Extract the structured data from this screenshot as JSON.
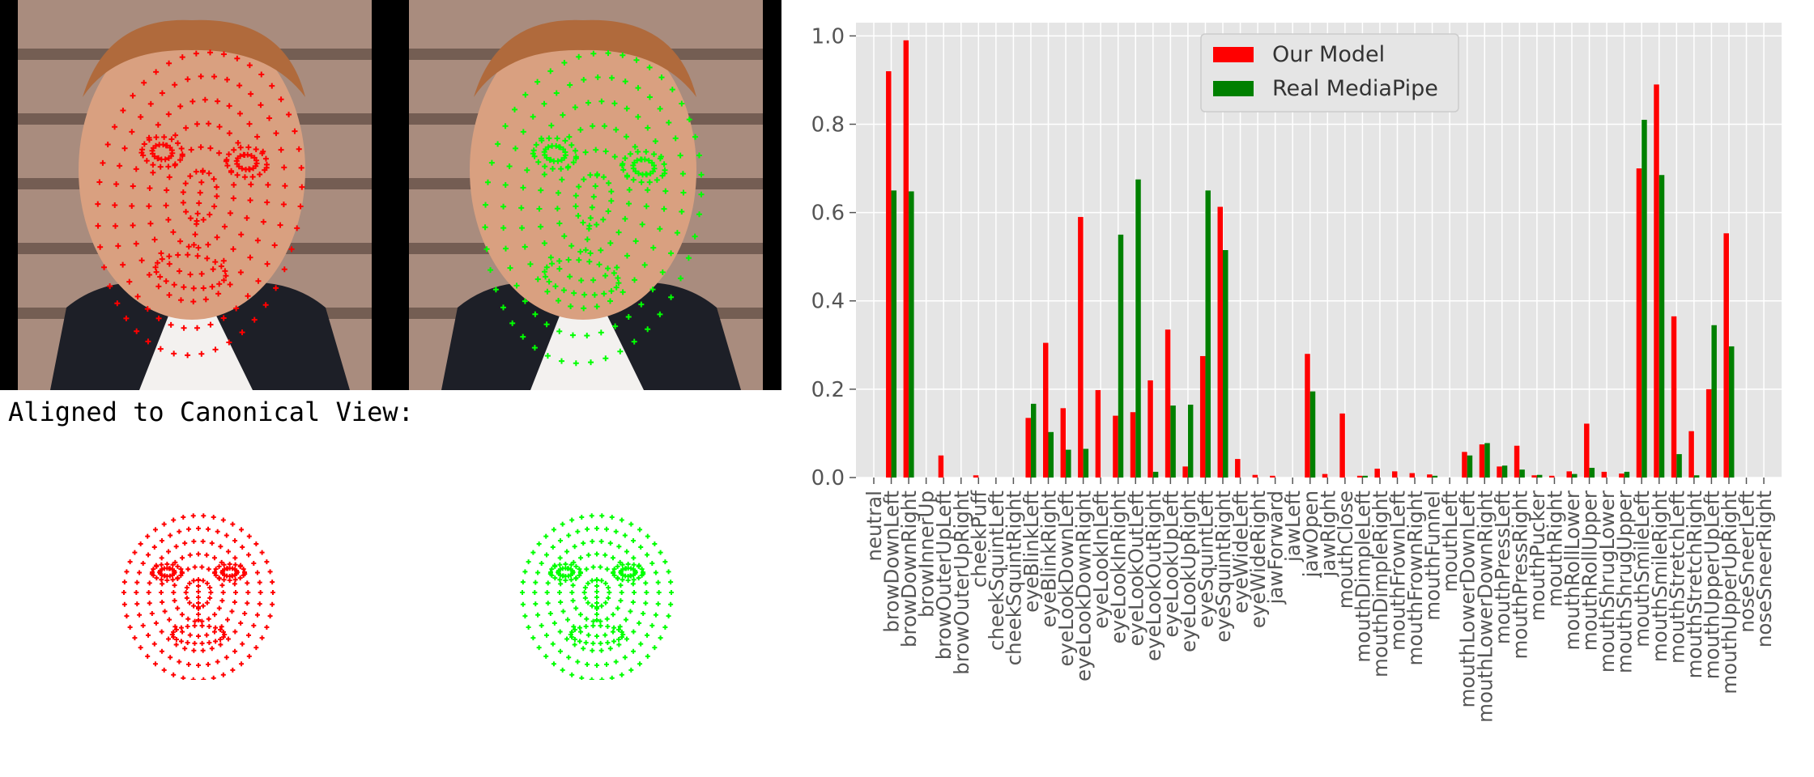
{
  "colors": {
    "our_model": "#ff0000",
    "real_mediapipe": "#008000",
    "green_points": "#00ff00",
    "plot_bg": "#e5e5e5"
  },
  "aligned_label": "Aligned to Canonical View:",
  "chart_data": {
    "type": "bar",
    "title": "",
    "xlabel": "",
    "ylabel": "",
    "ylim": [
      0,
      1.03
    ],
    "yticks": [
      "0.0",
      "0.2",
      "0.4",
      "0.6",
      "0.8",
      "1.0"
    ],
    "grid": true,
    "legend_position": "top-center",
    "categories": [
      "neutral",
      "browDownLeft",
      "browDownRight",
      "browInnerUp",
      "browOuterUpLeft",
      "browOuterUpRight",
      "cheekPuff",
      "cheekSquintLeft",
      "cheekSquintRight",
      "eyeBlinkLeft",
      "eyeBlinkRight",
      "eyeLookDownLeft",
      "eyeLookDownRight",
      "eyeLookInLeft",
      "eyeLookInRight",
      "eyeLookOutLeft",
      "eyeLookOutRight",
      "eyeLookUpLeft",
      "eyeLookUpRight",
      "eyeSquintLeft",
      "eyeSquintRight",
      "eyeWideLeft",
      "eyeWideRight",
      "jawForward",
      "jawLeft",
      "jawOpen",
      "jawRight",
      "mouthClose",
      "mouthDimpleLeft",
      "mouthDimpleRight",
      "mouthFrownLeft",
      "mouthFrownRight",
      "mouthFunnel",
      "mouthLeft",
      "mouthLowerDownLeft",
      "mouthLowerDownRight",
      "mouthPressLeft",
      "mouthPressRight",
      "mouthPucker",
      "mouthRight",
      "mouthRollLower",
      "mouthRollUpper",
      "mouthShrugLower",
      "mouthShrugUpper",
      "mouthSmileLeft",
      "mouthSmileRight",
      "mouthStretchLeft",
      "mouthStretchRight",
      "mouthUpperUpLeft",
      "mouthUpperUpRight",
      "noseSneerLeft",
      "noseSneerRight"
    ],
    "series": [
      {
        "name": "Our Model",
        "color": "#ff0000",
        "values": [
          0.0,
          0.92,
          0.99,
          0.0,
          0.05,
          0.0,
          0.005,
          0.0,
          0.0,
          0.135,
          0.305,
          0.157,
          0.59,
          0.198,
          0.14,
          0.148,
          0.22,
          0.335,
          0.025,
          0.275,
          0.613,
          0.042,
          0.006,
          0.004,
          0.0,
          0.28,
          0.008,
          0.145,
          0.004,
          0.02,
          0.014,
          0.01,
          0.007,
          0.0,
          0.058,
          0.075,
          0.025,
          0.072,
          0.005,
          0.004,
          0.014,
          0.122,
          0.013,
          0.009,
          0.7,
          0.89,
          0.365,
          0.105,
          0.2,
          0.553,
          0.0,
          0.0
        ]
      },
      {
        "name": "Real MediaPipe",
        "color": "#008000",
        "values": [
          0.0,
          0.65,
          0.648,
          0.0,
          0.0,
          0.0,
          0.0,
          0.0,
          0.0,
          0.167,
          0.103,
          0.063,
          0.065,
          0.0,
          0.55,
          0.675,
          0.013,
          0.163,
          0.165,
          0.65,
          0.515,
          0.0,
          0.0,
          0.0,
          0.0,
          0.195,
          0.0,
          0.0,
          0.004,
          0.0,
          0.0,
          0.0,
          0.004,
          0.0,
          0.05,
          0.078,
          0.027,
          0.018,
          0.006,
          0.0,
          0.008,
          0.022,
          0.0,
          0.013,
          0.81,
          0.685,
          0.053,
          0.005,
          0.345,
          0.297,
          0.0,
          0.0
        ]
      }
    ]
  }
}
